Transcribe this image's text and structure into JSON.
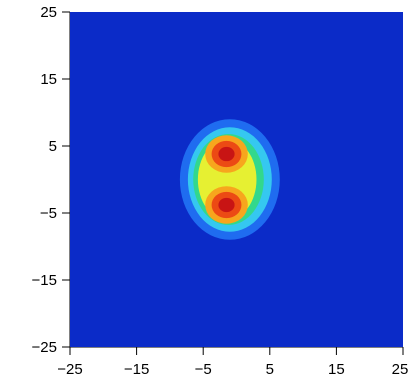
{
  "chart_data": {
    "type": "heatmap",
    "title": "",
    "xlabel": "",
    "ylabel": "",
    "xlim": [
      -25,
      25
    ],
    "ylim": [
      -25,
      25
    ],
    "x_ticks": [
      -25,
      -15,
      -5,
      5,
      15,
      25
    ],
    "y_ticks": [
      25,
      15,
      5,
      -5,
      -15,
      -25
    ],
    "x_tick_labels": [
      "−25",
      "−15",
      "−5",
      "5",
      "15",
      "25"
    ],
    "y_tick_labels": [
      "25",
      "15",
      "5",
      "−5",
      "−15",
      "−25"
    ],
    "colormap": [
      "#0b2bc8",
      "#1f6cf0",
      "#35c8f0",
      "#32d88c",
      "#e6f032",
      "#f7a61d",
      "#ec4a14",
      "#c81414"
    ],
    "levels": [
      {
        "rx": 7.5,
        "ry": 9.0,
        "cx": -1.0,
        "cy": 0.0
      },
      {
        "rx": 6.3,
        "ry": 7.8,
        "cx": -1.0,
        "cy": 0.0
      },
      {
        "rx": 5.3,
        "ry": 6.8,
        "cx": -1.2,
        "cy": 0.0
      },
      {
        "rx": 4.4,
        "ry": 6.0,
        "cx": -1.4,
        "cy": 0.0
      }
    ],
    "peaks": [
      {
        "x": -1.5,
        "y": 3.8,
        "rx": 3.2,
        "ry": 2.8
      },
      {
        "x": -1.5,
        "y": -3.8,
        "rx": 3.2,
        "ry": 2.8
      }
    ],
    "grid": false,
    "legend": "none"
  }
}
